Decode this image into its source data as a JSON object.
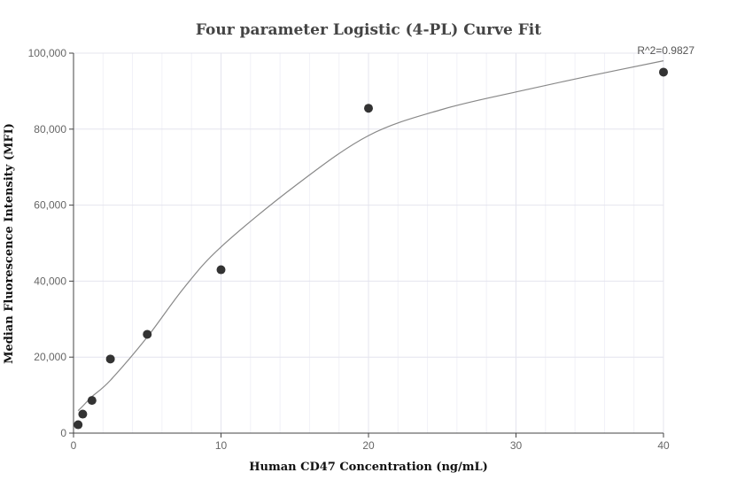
{
  "chart_data": {
    "type": "scatter",
    "title": "Four parameter Logistic (4-PL) Curve Fit",
    "xlabel": "Human CD47 Concentration (ng/mL)",
    "ylabel": "Median Fluorescence Intensity (MFI)",
    "xlim": [
      0,
      40
    ],
    "ylim": [
      0,
      100000
    ],
    "x_ticks": [
      0,
      10,
      20,
      30,
      40
    ],
    "x_tick_labels": [
      "0",
      "10",
      "20",
      "30",
      "40"
    ],
    "y_ticks": [
      0,
      20000,
      40000,
      60000,
      80000,
      100000
    ],
    "y_tick_labels": [
      "0",
      "20,000",
      "40,000",
      "60,000",
      "80,000",
      "100,000"
    ],
    "grid": true,
    "annotation": "R^2=0.9827",
    "series": [
      {
        "type": "scatter",
        "color": "#333333",
        "x": [
          0.313,
          0.625,
          1.25,
          2.5,
          5,
          10,
          20,
          40
        ],
        "y": [
          2200,
          5000,
          8600,
          19500,
          26000,
          43000,
          85500,
          95000
        ]
      },
      {
        "type": "line",
        "color": "#888888",
        "x": [
          0.313,
          0.625,
          1.25,
          2.5,
          5,
          7.5,
          10,
          15,
          20,
          25,
          30,
          35,
          40
        ],
        "y": [
          5900,
          7100,
          9600,
          13900,
          25300,
          38300,
          49000,
          65000,
          78300,
          85200,
          89800,
          94000,
          98000
        ]
      }
    ]
  }
}
